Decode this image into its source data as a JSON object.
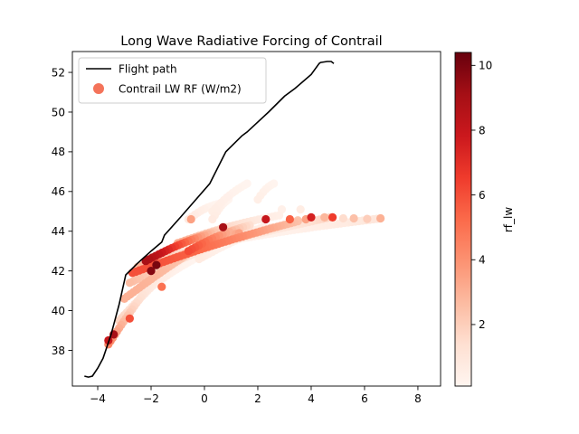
{
  "chart_data": {
    "type": "scatter",
    "title": "Long Wave Radiative Forcing of Contrail",
    "xlabel": "",
    "ylabel": "",
    "xlim": [
      -4.95,
      8.85
    ],
    "ylim": [
      36.2,
      53.05
    ],
    "xticks": [
      "−4",
      "−2",
      "0",
      "2",
      "4",
      "6",
      "8"
    ],
    "yticks": [
      "38",
      "40",
      "42",
      "44",
      "46",
      "48",
      "50",
      "52"
    ],
    "legend_position": "top-left",
    "legend": [
      {
        "label": "Flight path",
        "kind": "line",
        "color": "#000000"
      },
      {
        "label": "Contrail LW RF (W/m2)",
        "kind": "marker",
        "color": "#f4735a"
      }
    ],
    "colorbar": {
      "label": "rf_lw",
      "colormap": "Reds",
      "range": [
        0.1,
        10.4
      ],
      "ticks": [
        "2",
        "4",
        "6",
        "8",
        "10"
      ]
    },
    "flight_path": {
      "x": [
        -4.5,
        -4.35,
        -4.2,
        -4.0,
        -3.8,
        -3.5,
        -3.2,
        -2.95,
        -2.5,
        -2.0,
        -1.6,
        -1.5,
        -0.9,
        0.2,
        0.5,
        0.8,
        1.4,
        1.5,
        1.6,
        2.4,
        3.0,
        3.4,
        4.0,
        4.3,
        4.35,
        4.6,
        4.75,
        4.85
      ],
      "y": [
        36.7,
        36.65,
        36.7,
        37.1,
        37.6,
        38.8,
        40.3,
        41.8,
        42.4,
        43.0,
        43.45,
        43.8,
        44.7,
        46.4,
        47.2,
        48.0,
        48.8,
        48.9,
        49.0,
        50.0,
        50.8,
        51.2,
        51.9,
        52.45,
        52.5,
        52.55,
        52.55,
        52.45
      ]
    },
    "contrail_bands": [
      {
        "x_start": -3.6,
        "y_start": 38.3,
        "x_end": -1.5,
        "y_end": 42.2,
        "rf": 7.5
      },
      {
        "x_start": -3.2,
        "y_start": 39.5,
        "x_end": -0.2,
        "y_end": 43.4,
        "rf": 5.0
      },
      {
        "x_start": -3.0,
        "y_start": 40.6,
        "x_end": 0.8,
        "y_end": 44.0,
        "rf": 3.0
      },
      {
        "x_start": -2.8,
        "y_start": 41.4,
        "x_end": 2.2,
        "y_end": 44.2,
        "rf": 4.5
      },
      {
        "x_start": -2.7,
        "y_start": 41.9,
        "x_end": 3.5,
        "y_end": 44.5,
        "rf": 6.0
      },
      {
        "x_start": -2.5,
        "y_start": 42.2,
        "x_end": 4.7,
        "y_end": 44.7,
        "rf": 8.0
      },
      {
        "x_start": -2.2,
        "y_start": 42.5,
        "x_end": 0.5,
        "y_end": 44.0,
        "rf": 9.5
      },
      {
        "x_start": -1.8,
        "y_start": 42.7,
        "x_end": 1.3,
        "y_end": 43.9,
        "rf": 8.5
      },
      {
        "x_start": -1.5,
        "y_start": 42.9,
        "x_end": 6.6,
        "y_end": 44.65,
        "rf": 2.5
      },
      {
        "x_start": -1.0,
        "y_start": 43.4,
        "x_end": 2.8,
        "y_end": 44.8,
        "rf": 4.0
      },
      {
        "x_start": -0.6,
        "y_start": 43.0,
        "x_end": 1.7,
        "y_end": 44.3,
        "rf": 6.5
      },
      {
        "x_start": -0.2,
        "y_start": 42.6,
        "x_end": 2.5,
        "y_end": 44.2,
        "rf": 2.0
      },
      {
        "x_start": -2.2,
        "y_start": 41.0,
        "x_end": 0.2,
        "y_end": 43.0,
        "rf": 1.5
      },
      {
        "x_start": -0.6,
        "y_start": 44.6,
        "x_end": 0.6,
        "y_end": 45.4,
        "rf": 1.0
      },
      {
        "x_start": 0.3,
        "y_start": 45.0,
        "x_end": 1.6,
        "y_end": 46.4,
        "rf": 0.6
      },
      {
        "x_start": 2.0,
        "y_start": 45.6,
        "x_end": 2.6,
        "y_end": 46.4,
        "rf": 0.5
      },
      {
        "x_start": 0.3,
        "y_start": 44.6,
        "x_end": 0.9,
        "y_end": 45.6,
        "rf": 0.8
      }
    ],
    "contrail_points": [
      {
        "x": -1.6,
        "y": 41.2,
        "rf": 5.0
      },
      {
        "x": -0.5,
        "y": 44.6,
        "rf": 3.5
      },
      {
        "x": 2.3,
        "y": 44.6,
        "rf": 8.0
      },
      {
        "x": 4.8,
        "y": 44.7,
        "rf": 6.5
      },
      {
        "x": 4.0,
        "y": 44.7,
        "rf": 7.5
      },
      {
        "x": 3.2,
        "y": 44.6,
        "rf": 5.5
      },
      {
        "x": 0.7,
        "y": 44.2,
        "rf": 9.0
      },
      {
        "x": 6.6,
        "y": 44.65,
        "rf": 3.0
      },
      {
        "x": 6.1,
        "y": 44.62,
        "rf": 2.0
      },
      {
        "x": 5.6,
        "y": 44.65,
        "rf": 2.5
      },
      {
        "x": 5.2,
        "y": 44.65,
        "rf": 1.5
      },
      {
        "x": 4.5,
        "y": 44.7,
        "rf": 2.8
      },
      {
        "x": 3.8,
        "y": 44.6,
        "rf": 3.5
      },
      {
        "x": 3.5,
        "y": 44.55,
        "rf": 2.2
      },
      {
        "x": 3.6,
        "y": 45.1,
        "rf": 0.6
      },
      {
        "x": 2.9,
        "y": 45.1,
        "rf": 0.4
      },
      {
        "x": -1.8,
        "y": 42.3,
        "rf": 10.0
      },
      {
        "x": -2.0,
        "y": 42.0,
        "rf": 9.8
      },
      {
        "x": -3.6,
        "y": 38.5,
        "rf": 8.0
      },
      {
        "x": -3.4,
        "y": 38.8,
        "rf": 9.0
      },
      {
        "x": -2.8,
        "y": 39.6,
        "rf": 6.0
      }
    ]
  }
}
